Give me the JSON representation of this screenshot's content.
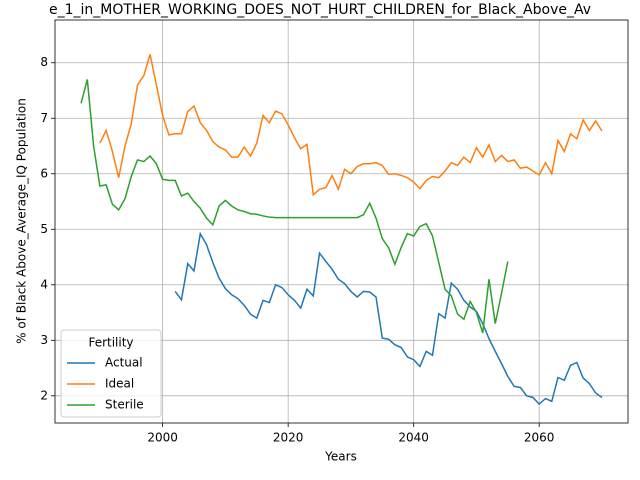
{
  "chart_data": {
    "type": "line",
    "title": "e_1_in_MOTHER_WORKING_DOES_NOT_HURT_CHILDREN_for_Black_Above_Av",
    "x_label": "Years",
    "y_label": "% of Black Above_Average_IQ Population",
    "x": [
      1987,
      1988,
      1989,
      1990,
      1991,
      1992,
      1993,
      1994,
      1995,
      1996,
      1997,
      1998,
      1999,
      2000,
      2001,
      2002,
      2003,
      2004,
      2005,
      2006,
      2007,
      2008,
      2009,
      2010,
      2011,
      2012,
      2013,
      2014,
      2015,
      2016,
      2017,
      2018,
      2019,
      2020,
      2021,
      2022,
      2023,
      2024,
      2025,
      2026,
      2027,
      2028,
      2029,
      2030,
      2031,
      2032,
      2033,
      2034,
      2035,
      2036,
      2037,
      2038,
      2039,
      2040,
      2041,
      2042,
      2043,
      2044,
      2045,
      2046,
      2047,
      2048,
      2049,
      2050,
      2051,
      2052,
      2053,
      2054,
      2055,
      2056,
      2057,
      2058,
      2059,
      2060,
      2061,
      2062,
      2063,
      2064,
      2065,
      2066,
      2067,
      2068,
      2069,
      2070
    ],
    "series": [
      {
        "name": "Actual",
        "color": "#1f77b4",
        "values": [
          null,
          null,
          null,
          null,
          null,
          null,
          null,
          null,
          null,
          null,
          null,
          null,
          null,
          null,
          null,
          3.88,
          3.73,
          4.38,
          4.25,
          4.92,
          4.72,
          4.4,
          4.12,
          3.93,
          3.82,
          3.75,
          3.63,
          3.47,
          3.4,
          3.72,
          3.68,
          4.0,
          3.95,
          3.82,
          3.72,
          3.58,
          3.92,
          3.8,
          4.57,
          4.42,
          4.28,
          4.1,
          4.02,
          3.88,
          3.78,
          3.88,
          3.87,
          3.78,
          3.04,
          3.02,
          2.92,
          2.87,
          2.7,
          2.65,
          2.53,
          2.8,
          2.73,
          3.48,
          3.4,
          4.03,
          3.92,
          3.72,
          3.6,
          3.52,
          3.3,
          3.03,
          2.8,
          2.58,
          2.35,
          2.17,
          2.15,
          2.0,
          1.97,
          1.85,
          1.95,
          1.9,
          2.33,
          2.28,
          2.55,
          2.6,
          2.32,
          2.22,
          2.05,
          1.97
        ]
      },
      {
        "name": "Ideal",
        "color": "#ff7f0e",
        "values": [
          null,
          null,
          null,
          6.55,
          6.78,
          6.4,
          5.93,
          6.5,
          6.9,
          7.6,
          7.77,
          8.15,
          7.6,
          7.05,
          6.7,
          6.72,
          6.72,
          7.12,
          7.22,
          6.92,
          6.78,
          6.58,
          6.48,
          6.43,
          6.3,
          6.3,
          6.48,
          6.32,
          6.55,
          7.05,
          6.92,
          7.13,
          7.08,
          6.88,
          6.65,
          6.45,
          6.53,
          5.62,
          5.72,
          5.75,
          5.97,
          5.72,
          6.08,
          6.0,
          6.13,
          6.18,
          6.18,
          6.2,
          6.15,
          5.99,
          6.0,
          5.97,
          5.93,
          5.85,
          5.73,
          5.88,
          5.95,
          5.93,
          6.05,
          6.2,
          6.15,
          6.3,
          6.2,
          6.47,
          6.3,
          6.52,
          6.22,
          6.33,
          6.22,
          6.25,
          6.1,
          6.12,
          6.05,
          5.98,
          6.2,
          6.0,
          6.6,
          6.4,
          6.72,
          6.63,
          6.97,
          6.78,
          6.95,
          6.77
        ]
      },
      {
        "name": "Sterile",
        "color": "#2ca02c",
        "values": [
          7.27,
          7.7,
          6.5,
          5.78,
          5.8,
          5.45,
          5.35,
          5.55,
          5.95,
          6.25,
          6.22,
          6.32,
          6.18,
          5.9,
          5.88,
          5.88,
          5.6,
          5.65,
          5.5,
          5.38,
          5.2,
          5.08,
          5.42,
          5.52,
          5.42,
          5.35,
          5.32,
          5.28,
          5.27,
          5.24,
          5.22,
          5.21,
          5.21,
          5.21,
          5.21,
          5.21,
          5.21,
          5.21,
          5.21,
          5.21,
          5.21,
          5.21,
          5.21,
          5.21,
          5.21,
          5.26,
          5.47,
          5.2,
          4.83,
          4.67,
          4.37,
          4.67,
          4.92,
          4.88,
          5.05,
          5.1,
          4.88,
          4.4,
          3.92,
          3.8,
          3.47,
          3.38,
          3.7,
          3.5,
          3.13,
          4.1,
          3.3,
          3.85,
          4.42,
          null,
          null,
          null,
          null,
          null,
          null,
          null,
          null,
          null,
          null,
          null,
          null,
          null,
          null,
          null
        ]
      }
    ],
    "xlim": [
      1982.85,
      2074.15
    ],
    "ylim": [
      1.51,
      8.77
    ],
    "xticks": [
      2000,
      2020,
      2040,
      2060
    ],
    "yticks": [
      2,
      3,
      4,
      5,
      6,
      7,
      8
    ],
    "grid": true,
    "legend": {
      "title": "Fertility",
      "position": "lower left"
    }
  }
}
